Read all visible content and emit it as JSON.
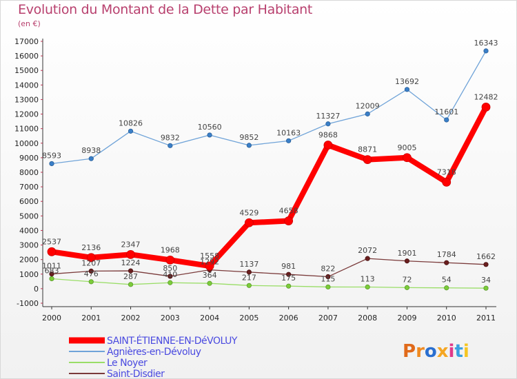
{
  "chart_data": {
    "type": "line",
    "title": "Evolution du Montant de la Dette par Habitant",
    "subtitle": "(en €)",
    "x": [
      "2000",
      "2001",
      "2002",
      "2003",
      "2004",
      "2005",
      "2006",
      "2007",
      "2008",
      "2009",
      "2010",
      "2011"
    ],
    "ylim": [
      -1000,
      17000
    ],
    "yticks": [
      -1000,
      0,
      1000,
      2000,
      3000,
      4000,
      5000,
      6000,
      7000,
      8000,
      9000,
      10000,
      11000,
      12000,
      13000,
      14000,
      15000,
      16000,
      17000
    ],
    "grid": false,
    "legend_position": "bottom-left",
    "series": [
      {
        "name": "SAINT-ÉTIENNE-EN-DéVOLUY",
        "color": "#ff0000",
        "values": [
          2537,
          2136,
          2347,
          1968,
          1558,
          4529,
          4658,
          9868,
          8871,
          9005,
          7318,
          12482
        ]
      },
      {
        "name": "Agnières-en-Dévoluy",
        "color": "#6fa3d8",
        "values": [
          8593,
          8938,
          10826,
          9832,
          10560,
          9852,
          10163,
          11327,
          12009,
          13692,
          11601,
          16343
        ]
      },
      {
        "name": "Le Noyer",
        "color": "#99dd66",
        "values": [
          683,
          476,
          287,
          410,
          364,
          217,
          175,
          115,
          113,
          72,
          54,
          34
        ]
      },
      {
        "name": "Saint-Disdier",
        "color": "#7a3a3a",
        "values": [
          1011,
          1207,
          1224,
          850,
          1292,
          1137,
          981,
          822,
          2072,
          1901,
          1784,
          1662
        ]
      }
    ]
  },
  "logo": {
    "text": "Proxiti"
  }
}
